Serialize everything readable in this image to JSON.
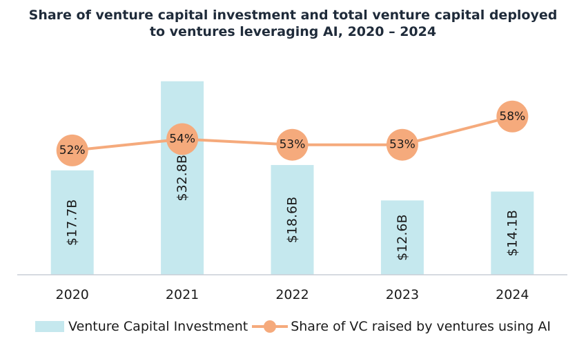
{
  "title_lines": [
    "Share of venture capital investment and total venture capital deployed",
    "to ventures leveraging AI, 2020 – 2024"
  ],
  "colors": {
    "bar": "#c5e8ee",
    "line": "#f5aa7c",
    "axis": "#c8ced6",
    "text": "#1a1a1a"
  },
  "chart_data": {
    "type": "bar",
    "categories": [
      "2020",
      "2021",
      "2022",
      "2023",
      "2024"
    ],
    "series": [
      {
        "name": "Venture Capital Investment",
        "type": "bar",
        "values": [
          17.7,
          32.8,
          18.6,
          12.6,
          14.1
        ],
        "labels": [
          "$17.7B",
          "$32.8B",
          "$18.6B",
          "$12.6B",
          "$14.1B"
        ]
      },
      {
        "name": "Share of VC raised by ventures using AI",
        "type": "line",
        "values": [
          52,
          54,
          53,
          53,
          58
        ],
        "labels": [
          "52%",
          "54%",
          "53%",
          "53%",
          "58%"
        ]
      }
    ],
    "title": "Share of venture capital investment and total venture capital deployed to ventures leveraging AI, 2020 – 2024",
    "xlabel": "",
    "ylabel": "",
    "ylim_bar": [
      0,
      33
    ],
    "ylim_line": [
      30,
      62
    ],
    "grid": false,
    "legend_position": "bottom"
  }
}
